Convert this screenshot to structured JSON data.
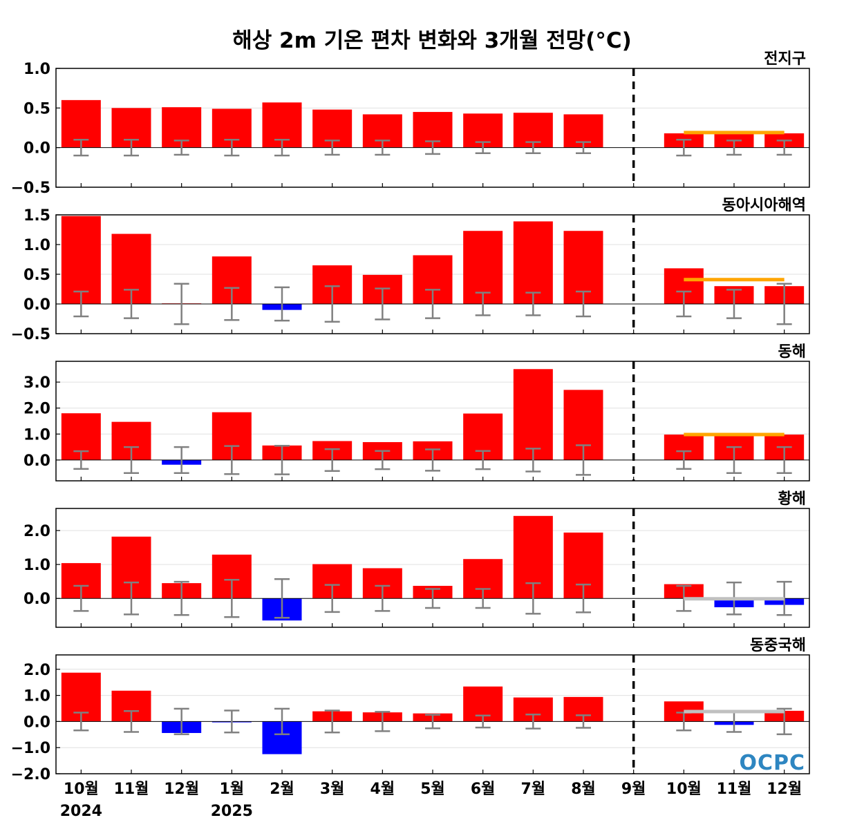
{
  "chart_data": {
    "type": "bar",
    "title": "해상 2m 기온 편차 변화와 3개월 전망(°C)",
    "categories": [
      "10월",
      "11월",
      "12월",
      "1월",
      "2월",
      "3월",
      "4월",
      "5월",
      "6월",
      "7월",
      "8월",
      "9월",
      "10월",
      "11월",
      "12월"
    ],
    "year_labels": [
      {
        "index": 0,
        "label": "2024"
      },
      {
        "index": 3,
        "label": "2025"
      }
    ],
    "forecast_start_index": 12,
    "divider_after": "9월",
    "colors": {
      "positive": "#ff0000",
      "negative": "#0000ff",
      "errorbar": "#808080",
      "forecast_warm": "#ffa500",
      "forecast_normal": "#c0c0c0"
    },
    "panels": [
      {
        "region": "전지구",
        "ylim": [
          -0.5,
          1.0
        ],
        "yticks": [
          "1.0",
          "0.5",
          "0.0",
          "−0.5"
        ],
        "ytick_values": [
          1.0,
          0.5,
          0.0,
          -0.5
        ],
        "values": [
          0.6,
          0.5,
          0.51,
          0.49,
          0.57,
          0.48,
          0.42,
          0.45,
          0.43,
          0.44,
          0.42,
          0.0,
          0.18,
          0.18,
          0.18
        ],
        "error_range": [
          0.1,
          0.1,
          0.09,
          0.1,
          0.1,
          0.09,
          0.09,
          0.08,
          0.07,
          0.07,
          0.07,
          0.0,
          0.1,
          0.09,
          0.09
        ],
        "forecast_line": {
          "value": 0.19,
          "color": "#ffa500"
        }
      },
      {
        "region": "동아시아해역",
        "ylim": [
          -0.5,
          1.5
        ],
        "yticks": [
          "1.5",
          "1.0",
          "0.5",
          "0.0",
          "−0.5"
        ],
        "ytick_values": [
          1.5,
          1.0,
          0.5,
          0.0,
          -0.5
        ],
        "values": [
          1.48,
          1.18,
          0.01,
          0.8,
          -0.1,
          0.65,
          0.49,
          0.82,
          1.23,
          1.39,
          1.23,
          0.0,
          0.6,
          0.3,
          0.3
        ],
        "error_range": [
          0.21,
          0.24,
          0.34,
          0.27,
          0.28,
          0.3,
          0.26,
          0.24,
          0.19,
          0.19,
          0.21,
          0.0,
          0.21,
          0.24,
          0.34
        ],
        "forecast_line": {
          "value": 0.41,
          "color": "#ffa500"
        }
      },
      {
        "region": "동해",
        "ylim": [
          -0.8,
          3.8
        ],
        "yticks": [
          "3.0",
          "2.0",
          "1.0",
          "0.0"
        ],
        "ytick_values": [
          3.0,
          2.0,
          1.0,
          0.0
        ],
        "values": [
          1.8,
          1.47,
          -0.18,
          1.84,
          0.56,
          0.73,
          0.69,
          0.72,
          1.79,
          3.5,
          2.7,
          0.0,
          0.98,
          0.98,
          0.98
        ],
        "error_range": [
          0.34,
          0.5,
          0.5,
          0.54,
          0.55,
          0.42,
          0.35,
          0.41,
          0.35,
          0.44,
          0.57,
          0.0,
          0.34,
          0.5,
          0.5
        ],
        "forecast_line": {
          "value": 0.98,
          "color": "#ffa500"
        }
      },
      {
        "region": "황해",
        "ylim": [
          -0.85,
          2.65
        ],
        "yticks": [
          "2.0",
          "1.0",
          "0.0"
        ],
        "ytick_values": [
          2.0,
          1.0,
          0.0
        ],
        "values": [
          1.04,
          1.82,
          0.45,
          1.29,
          -0.65,
          1.01,
          0.89,
          0.37,
          1.16,
          2.43,
          1.94,
          0.0,
          0.42,
          -0.26,
          -0.19
        ],
        "error_range": [
          0.37,
          0.47,
          0.49,
          0.55,
          0.57,
          0.4,
          0.37,
          0.28,
          0.28,
          0.45,
          0.41,
          0.0,
          0.37,
          0.47,
          0.49
        ],
        "forecast_line": {
          "value": -0.01,
          "color": "#c0c0c0"
        }
      },
      {
        "region": "동중국해",
        "ylim": [
          -2.0,
          2.55
        ],
        "yticks": [
          "2.0",
          "1.0",
          "0.0",
          "−1.0",
          "−2.0"
        ],
        "ytick_values": [
          2.0,
          1.0,
          0.0,
          -1.0,
          -2.0
        ],
        "values": [
          1.87,
          1.18,
          -0.44,
          -0.03,
          -1.25,
          0.39,
          0.35,
          0.31,
          1.34,
          0.92,
          0.94,
          0.0,
          0.77,
          -0.13,
          0.41
        ],
        "error_range": [
          0.34,
          0.4,
          0.49,
          0.42,
          0.49,
          0.42,
          0.37,
          0.26,
          0.23,
          0.27,
          0.24,
          0.0,
          0.34,
          0.4,
          0.49
        ],
        "forecast_line": {
          "value": 0.38,
          "color": "#c0c0c0"
        }
      }
    ],
    "logo": "OCPC"
  }
}
